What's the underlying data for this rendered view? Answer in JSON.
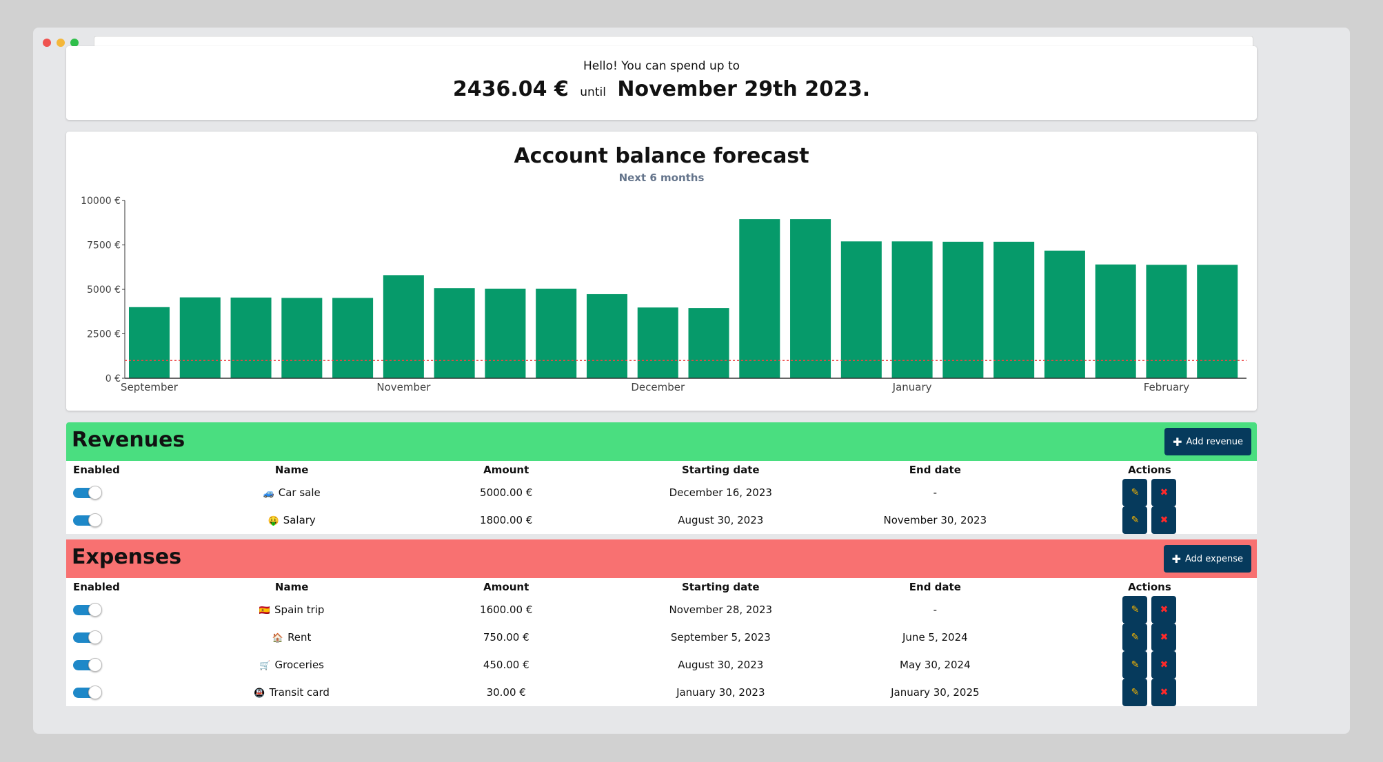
{
  "header": {
    "greeting": "Hello! You can spend up to",
    "amount": "2436.04 €",
    "until": "until",
    "date": "November 29th 2023."
  },
  "chart": {
    "title": "Account balance forecast",
    "subtitle": "Next 6 months"
  },
  "chart_data": {
    "type": "bar",
    "title": "Account balance forecast",
    "subtitle": "Next 6 months",
    "values": [
      4000,
      4550,
      4540,
      4520,
      4520,
      5800,
      5070,
      5040,
      5040,
      4730,
      3980,
      3950,
      8950,
      8950,
      7700,
      7700,
      7680,
      7680,
      7180,
      6400,
      6380,
      6380
    ],
    "series_color": "#069a6a",
    "ylim": [
      0,
      10000
    ],
    "yticks": [
      "0 €",
      "2500 €",
      "5000 €",
      "7500 €",
      "10000 €"
    ],
    "ytick_values": [
      0,
      2500,
      5000,
      7500,
      10000
    ],
    "xtick_labels": [
      "September",
      "November",
      "December",
      "January",
      "February"
    ],
    "xtick_positions": [
      0,
      5,
      10,
      15,
      20
    ],
    "threshold": 1000,
    "threshold_color": "#ef4444",
    "grid": false
  },
  "revenues": {
    "title": "Revenues",
    "add_label": "Add revenue",
    "color": "#4ade80",
    "columns": [
      "Enabled",
      "Name",
      "Amount",
      "Starting date",
      "End date",
      "Actions"
    ],
    "rows": [
      {
        "emoji": "🚙",
        "name": "Car sale",
        "amount": "5000.00 €",
        "start": "December 16, 2023",
        "end": "-",
        "enabled": true
      },
      {
        "emoji": "🤑",
        "name": "Salary",
        "amount": "1800.00 €",
        "start": "August 30, 2023",
        "end": "November 30, 2023",
        "enabled": true
      }
    ]
  },
  "expenses": {
    "title": "Expenses",
    "add_label": "Add expense",
    "color": "#f87171",
    "columns": [
      "Enabled",
      "Name",
      "Amount",
      "Starting date",
      "End date",
      "Actions"
    ],
    "rows": [
      {
        "emoji": "🇪🇸",
        "name": "Spain trip",
        "amount": "1600.00 €",
        "start": "November 28, 2023",
        "end": "-",
        "enabled": true
      },
      {
        "emoji": "🏠",
        "name": "Rent",
        "amount": "750.00 €",
        "start": "September 5, 2023",
        "end": "June 5, 2024",
        "enabled": true
      },
      {
        "emoji": "🛒",
        "name": "Groceries",
        "amount": "450.00 €",
        "start": "August 30, 2023",
        "end": "May 30, 2024",
        "enabled": true
      },
      {
        "emoji": "🚇",
        "name": "Transit card",
        "amount": "30.00 €",
        "start": "January 30, 2023",
        "end": "January 30, 2025",
        "enabled": true
      }
    ]
  },
  "icons": {
    "edit": "edit-icon",
    "delete": "delete-icon",
    "plus": "plus-icon"
  }
}
